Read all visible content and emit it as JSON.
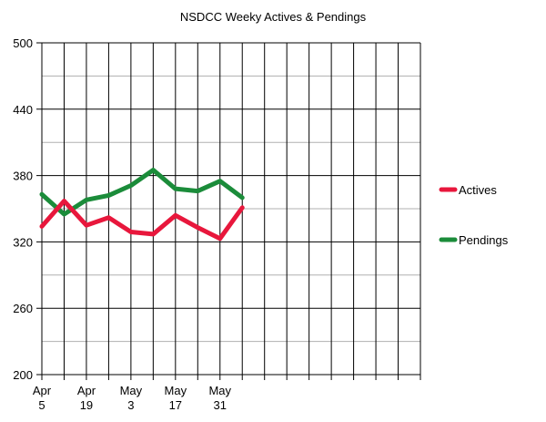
{
  "chart_data": {
    "type": "line",
    "title": "NSDCC Weeky Actives & Pendings",
    "xlabel": "",
    "ylabel": "",
    "ylim": [
      200,
      500
    ],
    "yticks": [
      200,
      260,
      320,
      380,
      440,
      500
    ],
    "x": [
      "Apr 5",
      "Apr 12",
      "Apr 19",
      "Apr 26",
      "May 3",
      "May 10",
      "May 17",
      "May 24",
      "May 31",
      "Jun 7"
    ],
    "x_tick_labels": [
      {
        "line1": "Apr",
        "line2": "5"
      },
      {
        "line1": "Apr",
        "line2": "19"
      },
      {
        "line1": "May",
        "line2": "3"
      },
      {
        "line1": "May",
        "line2": "17"
      },
      {
        "line1": "May",
        "line2": "31"
      }
    ],
    "total_periods": 17,
    "grid": true,
    "legend_position": "right",
    "series": [
      {
        "name": "Actives",
        "color": "#e8173c",
        "values": [
          334,
          357,
          335,
          342,
          329,
          327,
          344,
          333,
          323,
          351
        ]
      },
      {
        "name": "Pendings",
        "color": "#1b8c3a",
        "values": [
          363,
          345,
          358,
          362,
          371,
          385,
          368,
          366,
          375,
          360
        ]
      }
    ]
  }
}
